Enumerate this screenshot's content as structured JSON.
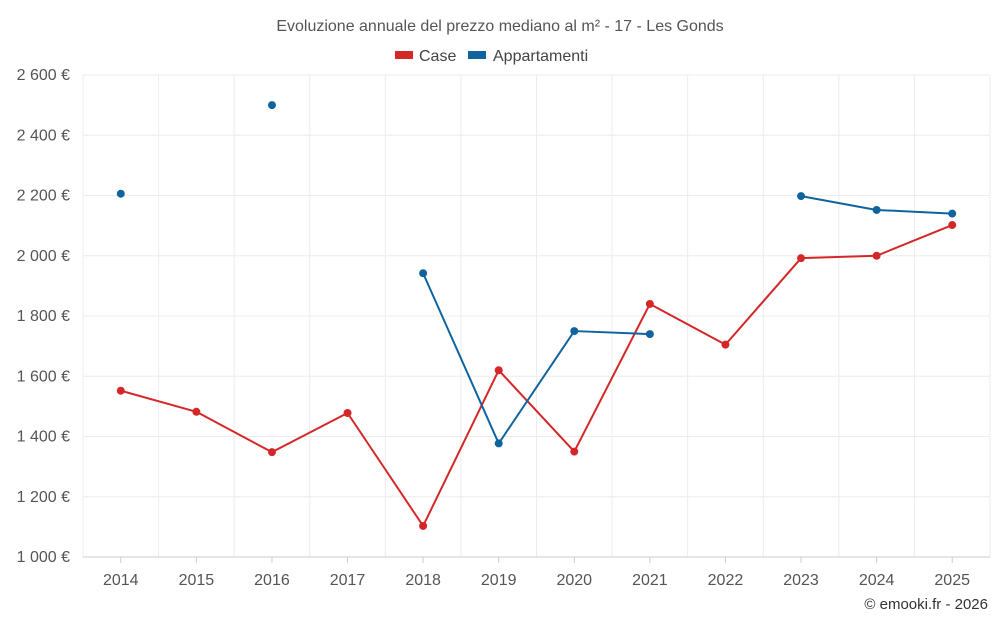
{
  "chart_data": {
    "type": "line",
    "title": "Evoluzione annuale del prezzo mediano al m² - 17 - Les Gonds",
    "credit": "© emooki.fr - 2026",
    "categories": [
      "2014",
      "2015",
      "2016",
      "2017",
      "2018",
      "2019",
      "2020",
      "2021",
      "2022",
      "2023",
      "2024",
      "2025"
    ],
    "ylim": [
      1000,
      2600
    ],
    "yticks": [
      1000,
      1200,
      1400,
      1600,
      1800,
      2000,
      2200,
      2400,
      2600
    ],
    "ytick_labels": [
      "1 000 €",
      "1 200 €",
      "1 400 €",
      "1 600 €",
      "1 800 €",
      "2 000 €",
      "2 200 €",
      "2 400 €",
      "2 600 €"
    ],
    "grid": true,
    "legend_position": "top-center",
    "series": [
      {
        "name": "Case",
        "color": "#d62728",
        "values": [
          1552,
          1482,
          1348,
          1478,
          1103,
          1620,
          1350,
          1840,
          1705,
          1992,
          2000,
          2102
        ]
      },
      {
        "name": "Appartamenti",
        "color": "#0f64a0",
        "values": [
          2206,
          null,
          2500,
          null,
          1942,
          1377,
          1750,
          1740,
          null,
          2198,
          2152,
          2140
        ]
      }
    ]
  }
}
